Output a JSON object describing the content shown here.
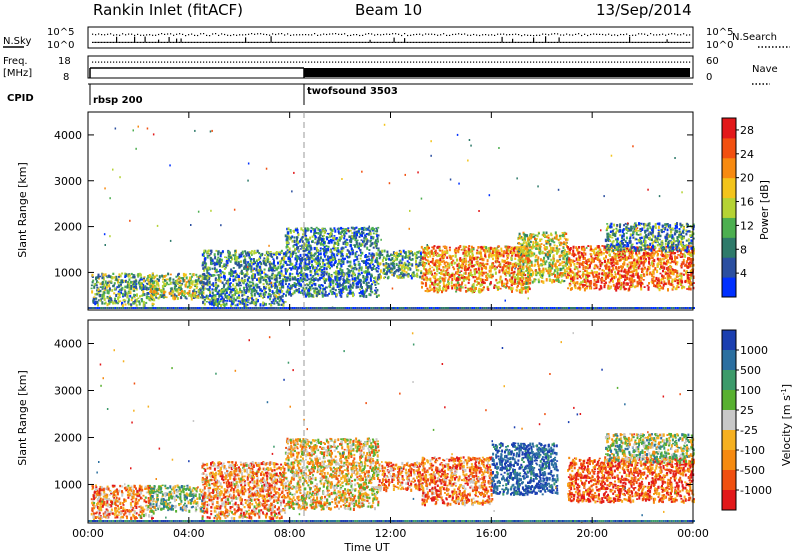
{
  "header": {
    "site": "Rankin Inlet (fitACF)",
    "beam": "Beam 10",
    "date": "13/Sep/2014"
  },
  "strip_labels": {
    "nsky": "N.Sky",
    "nsearch": "N.Search",
    "freq": "Freq.",
    "mhz": "[MHz]",
    "nave": "Nave",
    "cpid": "CPID",
    "noise_hi": "10^5",
    "noise_lo": "10^0",
    "freq_hi": "18",
    "freq_lo": "8",
    "nave_hi": "60",
    "nave_lo": "0"
  },
  "cpid_segments": [
    {
      "start": "00:00",
      "label": "rbsp 200"
    },
    {
      "start": "08:30",
      "label": "twofsound 3503"
    }
  ],
  "chart_data": [
    {
      "type": "heatmap",
      "name": "power-panel",
      "ylabel": "Slant Range [km]",
      "xlabel": "",
      "x_ticks": [
        "00:00",
        "04:00",
        "08:00",
        "12:00",
        "16:00",
        "20:00",
        "00:00"
      ],
      "y_ticks": [
        1000,
        2000,
        3000,
        4000
      ],
      "xlim_hours": [
        0,
        24
      ],
      "ylim_km": [
        180,
        4500
      ],
      "colorbar": {
        "label": "Power [dB]",
        "ticks": [
          4,
          8,
          12,
          16,
          20,
          24,
          28
        ],
        "range": [
          0,
          30
        ],
        "colors": [
          "#0030ff",
          "#2b4fa0",
          "#2e7a6a",
          "#4caf50",
          "#b5d334",
          "#f3c41b",
          "#f78a10",
          "#f25010",
          "#e2181a"
        ]
      },
      "scatter_regions": [
        {
          "h0": 0.1,
          "h1": 2.6,
          "r0": 300,
          "r1": 1000,
          "level": 0.35
        },
        {
          "h0": 2.4,
          "h1": 4.6,
          "r0": 450,
          "r1": 1000,
          "level": 0.45
        },
        {
          "h0": 4.5,
          "h1": 7.8,
          "r0": 300,
          "r1": 1500,
          "level": 0.3
        },
        {
          "h0": 7.8,
          "h1": 11.5,
          "r0": 500,
          "r1": 2000,
          "level": 0.25
        },
        {
          "h0": 11.5,
          "h1": 13.2,
          "r0": 900,
          "r1": 1500,
          "level": 0.35
        },
        {
          "h0": 13.2,
          "h1": 17.5,
          "r0": 600,
          "r1": 1600,
          "level": 0.7
        },
        {
          "h0": 17.0,
          "h1": 19.0,
          "r0": 800,
          "r1": 1900,
          "level": 0.55
        },
        {
          "h0": 19.0,
          "h1": 24.0,
          "r0": 650,
          "r1": 1600,
          "level": 0.8
        },
        {
          "h0": 20.5,
          "h1": 24.0,
          "r0": 1500,
          "r1": 2100,
          "level": 0.3
        }
      ]
    },
    {
      "type": "heatmap",
      "name": "velocity-panel",
      "ylabel": "Slant Range [km]",
      "xlabel": "Time UT",
      "x_ticks": [
        "00:00",
        "04:00",
        "08:00",
        "12:00",
        "16:00",
        "20:00",
        "00:00"
      ],
      "y_ticks": [
        1000,
        2000,
        3000,
        4000
      ],
      "xlim_hours": [
        0,
        24
      ],
      "ylim_km": [
        180,
        4500
      ],
      "colorbar": {
        "label": "Velocity [m s^-1]",
        "labels": [
          "1000",
          "500",
          "100",
          "25",
          "-25",
          "-100",
          "-500",
          "-1000"
        ],
        "colors": [
          "#1b3fb0",
          "#2b6fa0",
          "#3c9a6a",
          "#58b030",
          "#c8c8c8",
          "#f5b020",
          "#f58a10",
          "#f05010",
          "#e2181a"
        ]
      },
      "scatter_regions": [
        {
          "h0": 0.1,
          "h1": 2.6,
          "r0": 300,
          "r1": 1000,
          "level": 0.7
        },
        {
          "h0": 2.4,
          "h1": 4.6,
          "r0": 450,
          "r1": 1000,
          "level": 0.4
        },
        {
          "h0": 4.5,
          "h1": 7.8,
          "r0": 300,
          "r1": 1500,
          "level": 0.7
        },
        {
          "h0": 7.8,
          "h1": 11.5,
          "r0": 500,
          "r1": 2000,
          "level": 0.6
        },
        {
          "h0": 11.5,
          "h1": 13.2,
          "r0": 900,
          "r1": 1500,
          "level": 0.75
        },
        {
          "h0": 13.2,
          "h1": 16.0,
          "r0": 600,
          "r1": 1600,
          "level": 0.75
        },
        {
          "h0": 16.0,
          "h1": 18.6,
          "r0": 800,
          "r1": 1900,
          "level": 0.1
        },
        {
          "h0": 19.0,
          "h1": 24.0,
          "r0": 650,
          "r1": 1600,
          "level": 0.85
        },
        {
          "h0": 20.5,
          "h1": 24.0,
          "r0": 1500,
          "r1": 2100,
          "level": 0.45
        }
      ]
    }
  ]
}
